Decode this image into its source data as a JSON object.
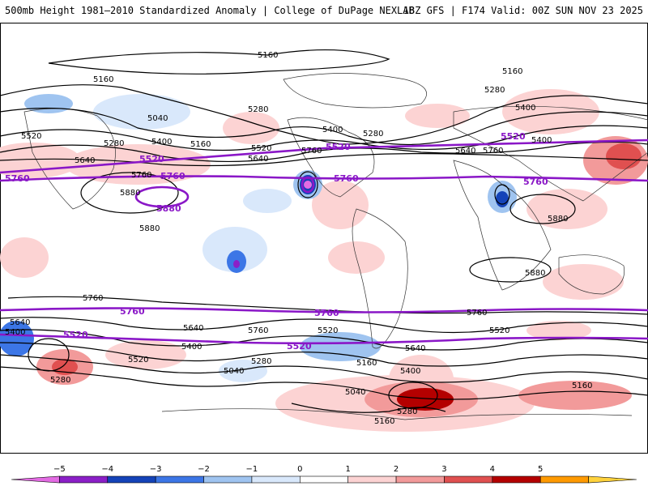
{
  "header": {
    "title": "500mb Height 1981–2010 Standardized Anomaly | College of DuPage NEXLAB",
    "run_info": "18Z GFS | F174 Valid: 00Z SUN NOV 23 2025"
  },
  "colorbar": {
    "ticks": [
      "−5",
      "−4",
      "−3",
      "−2",
      "−1",
      "0",
      "1",
      "2",
      "3",
      "4",
      "5"
    ],
    "colors": [
      "#e36be3",
      "#8b1fc7",
      "#1443b8",
      "#3c76e6",
      "#9fc4f0",
      "#d9e8fb",
      "#ffffff",
      "#fcd3d3",
      "#f29a9a",
      "#e05050",
      "#b40000",
      "#ff9a00",
      "#ffd23c"
    ]
  },
  "contours": {
    "labels": [
      {
        "text": "5160"
      },
      {
        "text": "5160"
      },
      {
        "text": "5160"
      },
      {
        "text": "5160"
      },
      {
        "text": "5160"
      },
      {
        "text": "5160"
      },
      {
        "text": "5160"
      },
      {
        "text": "5280"
      },
      {
        "text": "5280"
      },
      {
        "text": "5280"
      },
      {
        "text": "5280"
      },
      {
        "text": "5280"
      },
      {
        "text": "5280"
      },
      {
        "text": "5280"
      },
      {
        "text": "5040"
      },
      {
        "text": "5040"
      },
      {
        "text": "5040"
      },
      {
        "text": "5400"
      },
      {
        "text": "5400"
      },
      {
        "text": "5400"
      },
      {
        "text": "5400"
      },
      {
        "text": "5400"
      },
      {
        "text": "5400"
      },
      {
        "text": "5400"
      },
      {
        "text": "5520"
      },
      {
        "text": "5520"
      },
      {
        "text": "5520"
      },
      {
        "text": "5520"
      },
      {
        "text": "5520"
      },
      {
        "text": "5640"
      },
      {
        "text": "5640"
      },
      {
        "text": "5640"
      },
      {
        "text": "5640"
      },
      {
        "text": "5640"
      },
      {
        "text": "5640"
      },
      {
        "text": "5760"
      },
      {
        "text": "5760"
      },
      {
        "text": "5760"
      },
      {
        "text": "5760"
      },
      {
        "text": "5760"
      },
      {
        "text": "5760"
      },
      {
        "text": "5880"
      },
      {
        "text": "5880"
      },
      {
        "text": "5880"
      },
      {
        "text": "5880"
      }
    ],
    "purple_labels": [
      {
        "text": "5520"
      },
      {
        "text": "5520"
      },
      {
        "text": "5520"
      },
      {
        "text": "5520"
      },
      {
        "text": "5520"
      },
      {
        "text": "5760"
      },
      {
        "text": "5760"
      },
      {
        "text": "5760"
      },
      {
        "text": "5760"
      },
      {
        "text": "5760"
      },
      {
        "text": "5760"
      },
      {
        "text": "5880"
      }
    ]
  },
  "legend_colors": {
    "purple": "#8a17c7",
    "contour": "#000000"
  }
}
